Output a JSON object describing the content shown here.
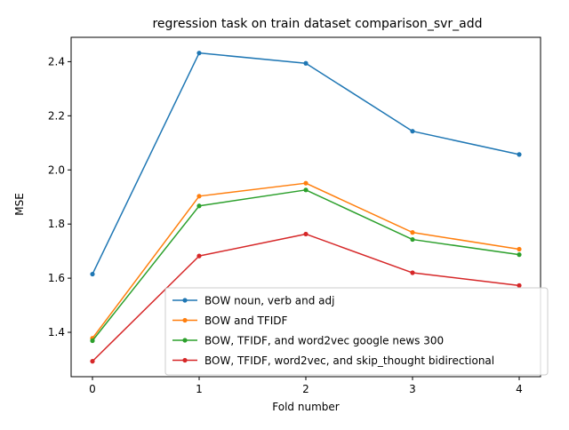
{
  "chart_data": {
    "type": "line",
    "title": "regression task on train dataset comparison_svr_add",
    "xlabel": "Fold number",
    "ylabel": "MSE",
    "x": [
      0,
      1,
      2,
      3,
      4
    ],
    "xticks": [
      "0",
      "1",
      "2",
      "3",
      "4"
    ],
    "yticks": [
      1.4,
      1.6,
      1.8,
      2.0,
      2.2,
      2.4
    ],
    "ytick_labels": [
      "1.4",
      "1.6",
      "1.8",
      "2.0",
      "2.2",
      "2.4"
    ],
    "xlim": [
      -0.2,
      4.2
    ],
    "ylim": [
      1.236,
      2.49
    ],
    "grid": false,
    "legend_position": "lower-right",
    "series": [
      {
        "name": "BOW noun, verb and adj",
        "color": "#1f77b4",
        "values": [
          1.615,
          2.432,
          2.394,
          2.143,
          2.057
        ]
      },
      {
        "name": "BOW and TFIDF",
        "color": "#ff7f0e",
        "values": [
          1.378,
          1.903,
          1.951,
          1.769,
          1.707
        ]
      },
      {
        "name": "BOW, TFIDF, and word2vec google news 300",
        "color": "#2ca02c",
        "values": [
          1.369,
          1.867,
          1.926,
          1.743,
          1.687
        ]
      },
      {
        "name": "BOW, TFIDF, word2vec, and skip_thought bidirectional",
        "color": "#d62728",
        "values": [
          1.293,
          1.682,
          1.763,
          1.62,
          1.573
        ]
      }
    ]
  }
}
